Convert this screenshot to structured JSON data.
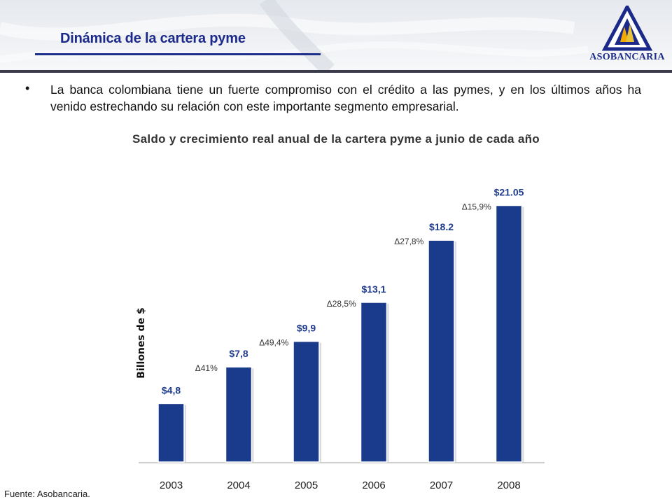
{
  "header": {
    "title": "Dinámica de la cartera pyme",
    "logo_text": "ASOBANCARIA"
  },
  "bullet": {
    "text": "La banca colombiana tiene un fuerte compromiso con el crédito a las pymes, y en los últimos años ha venido estrechando su relación con este importante segmento empresarial."
  },
  "source": "Fuente: Asobancaria.",
  "colors": {
    "bar": "#1a3a8c",
    "title": "#1b2a8a",
    "label": "#1f3b8c",
    "growth": "#333333"
  },
  "chart_data": {
    "type": "bar",
    "title": "Saldo y crecimiento real anual de la cartera pyme a junio de cada año",
    "ylabel": "Billones de $",
    "xlabel": "",
    "categories": [
      "2003",
      "2004",
      "2005",
      "2006",
      "2007",
      "2008"
    ],
    "values": [
      4.8,
      7.8,
      9.9,
      13.1,
      18.2,
      21.05
    ],
    "value_labels": [
      "$4,8",
      "$7,8",
      "$9,9",
      "$13,1",
      "$18.2",
      "$21.05"
    ],
    "growth_labels": [
      "Δ41%",
      "Δ49,4%",
      "Δ28,5%",
      "Δ27,8%",
      "Δ15,9%"
    ],
    "growth_values_pct": [
      41,
      49.4,
      28.5,
      27.8,
      15.9
    ],
    "ylim": [
      0,
      22
    ],
    "grid": false,
    "legend": "none"
  }
}
